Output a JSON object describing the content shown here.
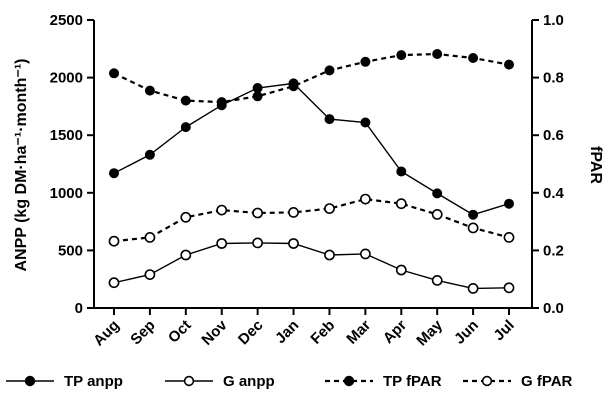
{
  "chart_data": {
    "type": "line",
    "categories": [
      "Aug",
      "Sep",
      "Oct",
      "Nov",
      "Dec",
      "Jan",
      "Feb",
      "Mar",
      "Apr",
      "May",
      "Jun",
      "Jul"
    ],
    "ylabel": "ANPP (kg DM·ha⁻¹·month⁻¹)",
    "y2label": "fPAR",
    "ylim": [
      0,
      2500
    ],
    "y2lim": [
      0,
      1.0
    ],
    "yticks": [
      "0",
      "500",
      "1000",
      "1500",
      "2000",
      "2500"
    ],
    "y2ticks": [
      "0.0",
      "0.2",
      "0.4",
      "0.6",
      "0.8",
      "1.0"
    ],
    "grid": false,
    "legend_position": "bottom",
    "series": [
      {
        "name": "TP anpp",
        "axis": "left",
        "style": "solid",
        "marker": "filled",
        "values": [
          1170,
          1330,
          1570,
          1760,
          1910,
          1950,
          1640,
          1610,
          1185,
          995,
          810,
          905
        ]
      },
      {
        "name": "G anpp",
        "axis": "left",
        "style": "solid",
        "marker": "open",
        "values": [
          220,
          290,
          460,
          560,
          565,
          560,
          460,
          470,
          330,
          240,
          170,
          175
        ]
      },
      {
        "name": "TP fPAR",
        "axis": "right",
        "style": "dashed",
        "marker": "filled",
        "values": [
          0.815,
          0.755,
          0.72,
          0.715,
          0.735,
          0.77,
          0.825,
          0.855,
          0.878,
          0.882,
          0.868,
          0.845
        ]
      },
      {
        "name": "G fPAR",
        "axis": "right",
        "style": "dashed",
        "marker": "open",
        "values": [
          0.232,
          0.245,
          0.315,
          0.34,
          0.33,
          0.332,
          0.345,
          0.378,
          0.362,
          0.325,
          0.278,
          0.245
        ]
      }
    ]
  }
}
